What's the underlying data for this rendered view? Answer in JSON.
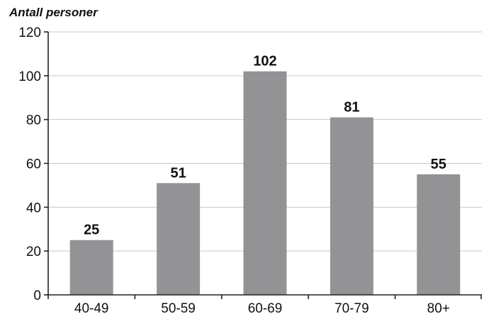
{
  "chart_data": {
    "type": "bar",
    "ylabel": "Antall personer",
    "xlabel": "",
    "categories": [
      "40-49",
      "50-59",
      "60-69",
      "70-79",
      "80+"
    ],
    "values": [
      25,
      51,
      102,
      81,
      55
    ],
    "data_labels": [
      "25",
      "51",
      "102",
      "81",
      "55"
    ],
    "ylim": [
      0,
      120
    ],
    "yticks": [
      0,
      20,
      40,
      60,
      80,
      100,
      120
    ],
    "grid": true,
    "bar_color": "#939396",
    "grid_color": "#c8c8c8"
  }
}
